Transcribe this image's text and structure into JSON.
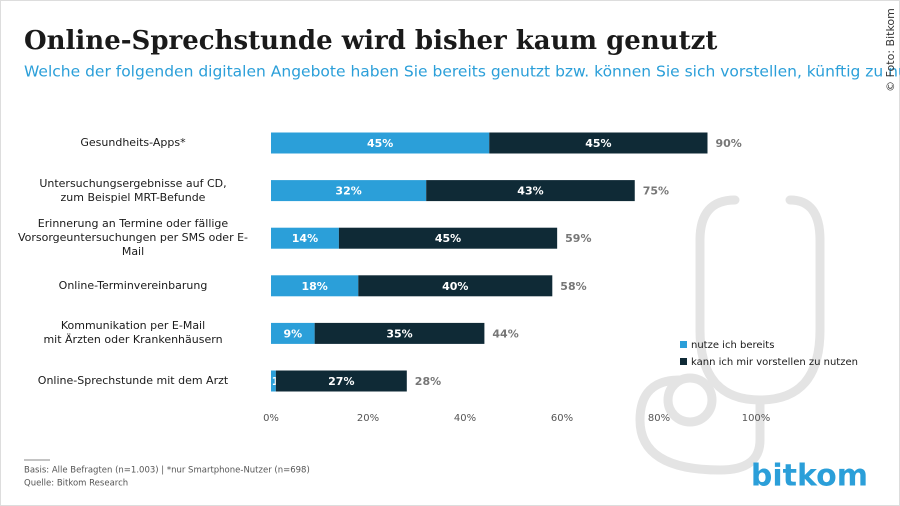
{
  "chart_data": {
    "type": "stacked-barh",
    "title": "Online-Sprechstunde wird bisher kaum genutzt",
    "subtitle": "Welche der folgenden digitalen Angebote haben Sie bereits genutzt bzw. können Sie sich vorstellen, künftig zu nutzen?",
    "credit": "© Foto: Bitkom",
    "notes": [
      "Basis: Alle Befragten (n=1.003) | *nur Smartphone-Nutzer (n=698)",
      "Quelle: Bitkom Research"
    ],
    "logo": "bitkom",
    "categories": [
      "Gesundheits-Apps*",
      "Untersuchungsergebnisse auf CD,\nzum Beispiel MRT-Befunde",
      "Erinnerung an Termine oder fällige\nVorsorgeuntersuchungen per SMS oder E-Mail",
      "Online-Terminvereinbarung",
      "Kommunikation per E-Mail\nmit Ärzten oder Krankenhäusern",
      "Online-Sprechstunde mit dem Arzt"
    ],
    "series": [
      {
        "name": "nutze ich bereits",
        "color": "#2b9fd9",
        "values": [
          45,
          32,
          14,
          18,
          9,
          1
        ],
        "value_labels": [
          "45%",
          "32%",
          "14%",
          "18%",
          "9%",
          "1%"
        ]
      },
      {
        "name": "kann ich mir vorstellen zu nutzen",
        "color": "#0f2a36",
        "values": [
          45,
          43,
          45,
          40,
          35,
          27
        ],
        "value_labels": [
          "45%",
          "43%",
          "45%",
          "40%",
          "35%",
          "27%"
        ]
      }
    ],
    "totals": [
      90,
      75,
      59,
      58,
      44,
      28
    ],
    "total_labels": [
      "90%",
      "75%",
      "59%",
      "58%",
      "44%",
      "28%"
    ],
    "xlim": [
      0,
      100
    ],
    "xticks": [
      {
        "value": 0,
        "label": "0%"
      },
      {
        "value": 20,
        "label": "20%"
      },
      {
        "value": 40,
        "label": "40%"
      },
      {
        "value": 60,
        "label": "60%"
      },
      {
        "value": 80,
        "label": "80%"
      },
      {
        "value": 100,
        "label": "100%"
      }
    ],
    "grid": false,
    "legend": "lower-right"
  }
}
